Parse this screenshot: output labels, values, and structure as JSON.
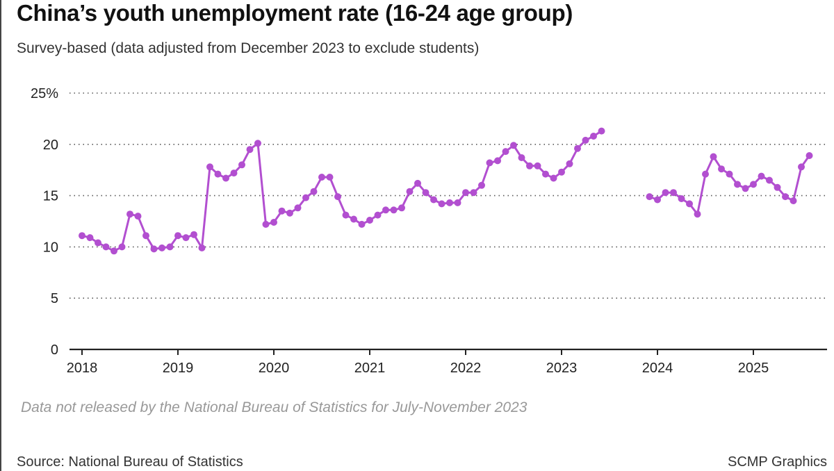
{
  "title": "China’s youth unemployment rate (16-24 age group)",
  "subtitle": "Survey-based (data adjusted from December 2023 to exclude students)",
  "note": "Data not released by the National Bureau of Statistics for July-November 2023",
  "source": "Source: National Bureau of Statistics",
  "credit": "SCMP Graphics",
  "colors": {
    "line": "#b24fd0",
    "grid": "#555555",
    "axis": "#222222"
  },
  "chart_data": {
    "type": "line",
    "title": "China’s youth unemployment rate (16-24 age group)",
    "xlabel": "",
    "ylabel": "",
    "ylim": [
      0,
      25
    ],
    "y_ticks": [
      {
        "value": 0,
        "label": "0"
      },
      {
        "value": 5,
        "label": "5"
      },
      {
        "value": 10,
        "label": "10"
      },
      {
        "value": 15,
        "label": "15"
      },
      {
        "value": 20,
        "label": "20"
      },
      {
        "value": 25,
        "label": "25%"
      }
    ],
    "x_ticks": [
      "2018",
      "2019",
      "2020",
      "2021",
      "2022",
      "2023",
      "2024",
      "2025"
    ],
    "grid": "horizontal dotted",
    "series": [
      {
        "name": "2018-01 to 2023-06",
        "start": "2018-01",
        "values": [
          11.1,
          10.9,
          10.4,
          10.0,
          9.6,
          10.0,
          13.2,
          13.0,
          11.1,
          9.8,
          9.9,
          10.0,
          11.1,
          10.9,
          11.2,
          9.9,
          17.8,
          17.1,
          16.7,
          17.2,
          18.0,
          19.5,
          20.1,
          12.2,
          12.4,
          13.5,
          13.3,
          13.8,
          14.8,
          15.4,
          16.8,
          16.8,
          14.9,
          13.1,
          12.7,
          12.2,
          12.6,
          13.1,
          13.6,
          13.6,
          13.8,
          15.4,
          16.2,
          15.3,
          14.6,
          14.2,
          14.3,
          14.3,
          15.3,
          15.3,
          16.0,
          18.2,
          18.4,
          19.3,
          19.9,
          18.7,
          17.9,
          17.9,
          17.1,
          16.7,
          17.3,
          18.1,
          19.6,
          20.4,
          20.8,
          21.3
        ]
      },
      {
        "name": "2023-12 to 2025-08",
        "start": "2023-12",
        "values": [
          14.9,
          14.6,
          15.3,
          15.3,
          14.7,
          14.2,
          13.2,
          17.1,
          18.8,
          17.6,
          17.1,
          16.1,
          15.7,
          16.1,
          16.9,
          16.5,
          15.8,
          14.9,
          14.5,
          17.8,
          18.9
        ]
      }
    ]
  }
}
